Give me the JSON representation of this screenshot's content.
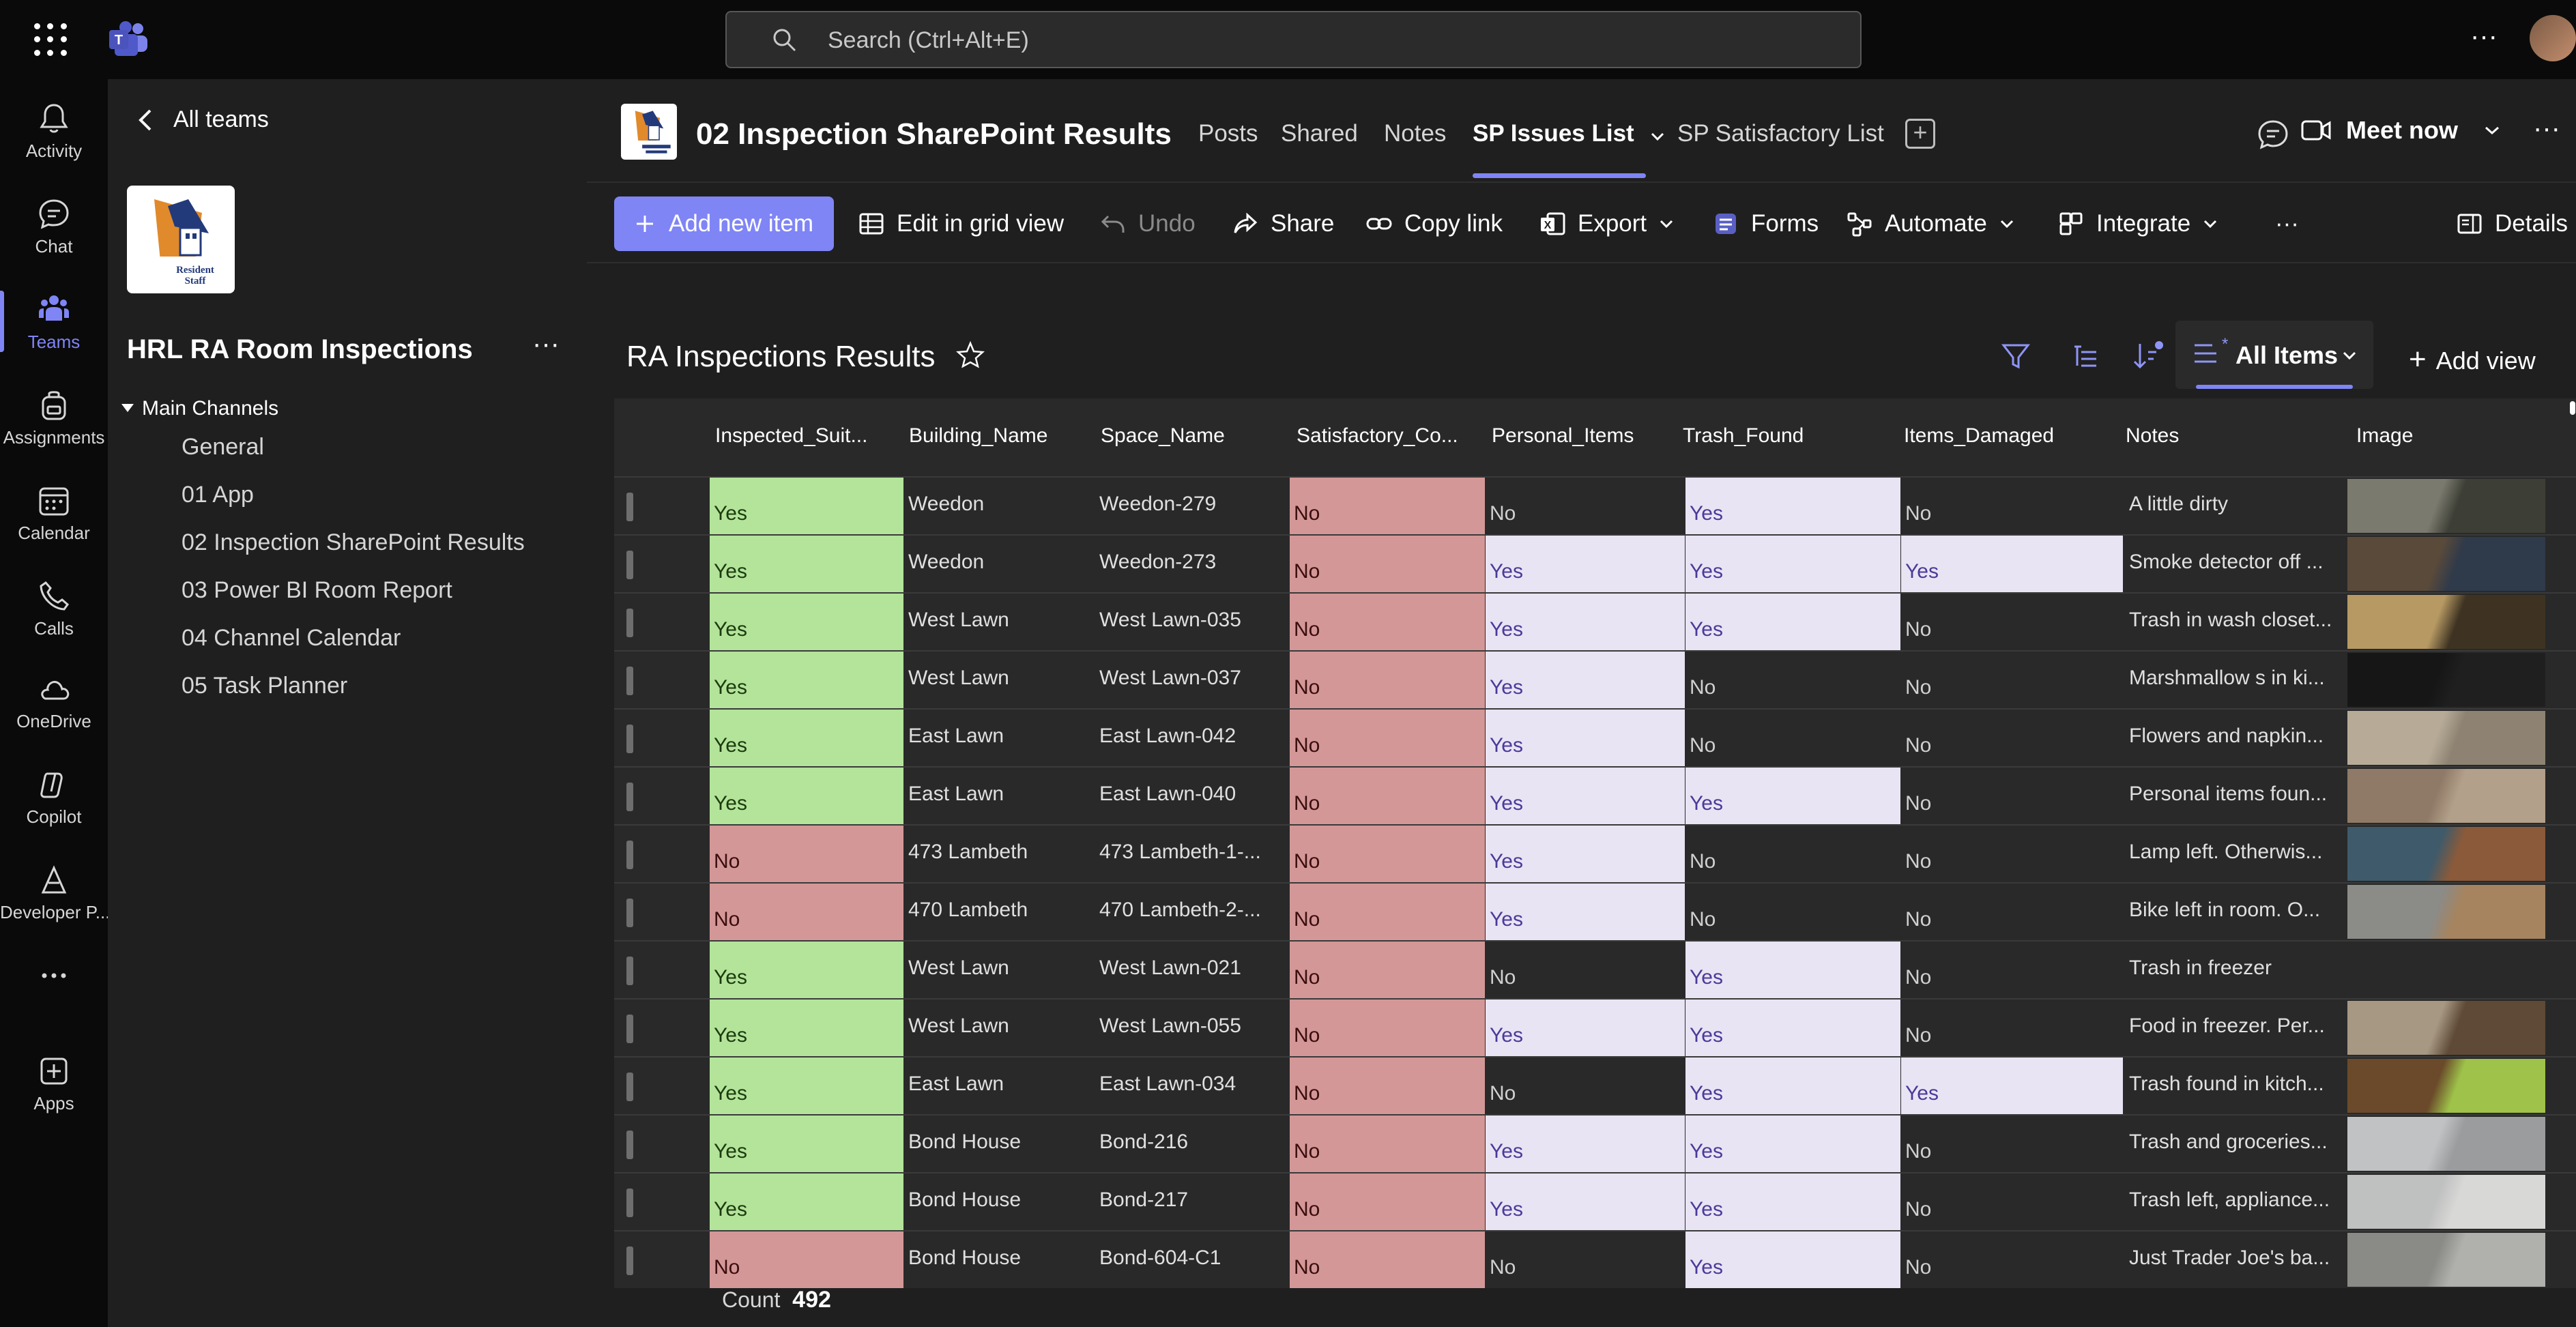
{
  "topbar": {
    "search_placeholder": "Search (Ctrl+Alt+E)"
  },
  "rail": [
    {
      "name": "activity",
      "label": "Activity",
      "icon": "bell-icon"
    },
    {
      "name": "chat",
      "label": "Chat",
      "icon": "chat-icon"
    },
    {
      "name": "teams",
      "label": "Teams",
      "icon": "teams-icon",
      "active": true
    },
    {
      "name": "assignments",
      "label": "Assignments",
      "icon": "backpack-icon"
    },
    {
      "name": "calendar",
      "label": "Calendar",
      "icon": "calendar-icon"
    },
    {
      "name": "calls",
      "label": "Calls",
      "icon": "phone-icon"
    },
    {
      "name": "onedrive",
      "label": "OneDrive",
      "icon": "cloud-icon"
    },
    {
      "name": "copilot",
      "label": "Copilot",
      "icon": "copilot-icon"
    },
    {
      "name": "developer",
      "label": "Developer P...",
      "icon": "developer-portal-icon"
    },
    {
      "name": "more",
      "label": "",
      "icon": "more-dots-icon"
    },
    {
      "name": "apps",
      "label": "Apps",
      "icon": "add-apps-icon"
    }
  ],
  "team_pane": {
    "back_label": "All teams",
    "team_name": "HRL RA Room Inspections",
    "section_label": "Main Channels",
    "channels": [
      "General",
      "01 App",
      "02 Inspection SharePoint Results",
      "03 Power BI Room Report",
      "04 Channel Calendar",
      "05 Task Planner"
    ]
  },
  "channel_header": {
    "title": "02 Inspection SharePoint Results",
    "tabs": [
      "Posts",
      "Shared",
      "Notes",
      "SP Issues List",
      "SP Satisfactory List"
    ],
    "active_tab": "SP Issues List",
    "meet_now": "Meet now"
  },
  "commands": {
    "add_new_item": "Add new item",
    "edit_grid": "Edit in grid view",
    "undo": "Undo",
    "share": "Share",
    "copy_link": "Copy link",
    "export": "Export",
    "forms": "Forms",
    "automate": "Automate",
    "integrate": "Integrate",
    "details": "Details"
  },
  "list": {
    "title": "RA Inspections Results",
    "view_name": "All Items",
    "add_view": "Add view",
    "columns": [
      "Inspected_Suit...",
      "Building_Name",
      "Space_Name",
      "Satisfactory_Co...",
      "Personal_Items",
      "Trash_Found",
      "Items_Damaged",
      "Notes",
      "Image"
    ],
    "rows": [
      {
        "inspected": "Yes",
        "building": "Weedon",
        "space": "Weedon-279",
        "satisfactory": "No",
        "personal": "No",
        "trash": "Yes",
        "damaged": "No",
        "notes": "A little dirty",
        "image": "room-photo-1"
      },
      {
        "inspected": "Yes",
        "building": "Weedon",
        "space": "Weedon-273",
        "satisfactory": "No",
        "personal": "Yes",
        "trash": "Yes",
        "damaged": "Yes",
        "notes": "Smoke detector off ...",
        "image": "room-photo-2"
      },
      {
        "inspected": "Yes",
        "building": "West Lawn",
        "space": "West Lawn-035",
        "satisfactory": "No",
        "personal": "Yes",
        "trash": "Yes",
        "damaged": "No",
        "notes": "Trash in wash closet...",
        "image": "room-photo-3"
      },
      {
        "inspected": "Yes",
        "building": "West Lawn",
        "space": "West Lawn-037",
        "satisfactory": "No",
        "personal": "Yes",
        "trash": "No",
        "damaged": "No",
        "notes": "Marshmallow s in ki...",
        "image": "room-photo-4"
      },
      {
        "inspected": "Yes",
        "building": "East Lawn",
        "space": "East Lawn-042",
        "satisfactory": "No",
        "personal": "Yes",
        "trash": "No",
        "damaged": "No",
        "notes": "Flowers and napkin...",
        "image": "room-photo-5"
      },
      {
        "inspected": "Yes",
        "building": "East Lawn",
        "space": "East Lawn-040",
        "satisfactory": "No",
        "personal": "Yes",
        "trash": "Yes",
        "damaged": "No",
        "notes": "Personal items foun...",
        "image": "room-photo-6"
      },
      {
        "inspected": "No",
        "building": "473 Lambeth",
        "space": "473 Lambeth-1-...",
        "satisfactory": "No",
        "personal": "Yes",
        "trash": "No",
        "damaged": "No",
        "notes": "Lamp left. Otherwis...",
        "image": "room-photo-7"
      },
      {
        "inspected": "No",
        "building": "470 Lambeth",
        "space": "470 Lambeth-2-...",
        "satisfactory": "No",
        "personal": "Yes",
        "trash": "No",
        "damaged": "No",
        "notes": "Bike left in room. O...",
        "image": "room-photo-8"
      },
      {
        "inspected": "Yes",
        "building": "West Lawn",
        "space": "West Lawn-021",
        "satisfactory": "No",
        "personal": "No",
        "trash": "Yes",
        "damaged": "No",
        "notes": "Trash in freezer",
        "image": ""
      },
      {
        "inspected": "Yes",
        "building": "West Lawn",
        "space": "West Lawn-055",
        "satisfactory": "No",
        "personal": "Yes",
        "trash": "Yes",
        "damaged": "No",
        "notes": "Food in freezer. Per...",
        "image": "room-photo-10"
      },
      {
        "inspected": "Yes",
        "building": "East Lawn",
        "space": "East Lawn-034",
        "satisfactory": "No",
        "personal": "No",
        "trash": "Yes",
        "damaged": "Yes",
        "notes": "Trash found in kitch...",
        "image": "room-photo-11"
      },
      {
        "inspected": "Yes",
        "building": "Bond House",
        "space": "Bond-216",
        "satisfactory": "No",
        "personal": "Yes",
        "trash": "Yes",
        "damaged": "No",
        "notes": "Trash and groceries...",
        "image": "room-photo-12"
      },
      {
        "inspected": "Yes",
        "building": "Bond House",
        "space": "Bond-217",
        "satisfactory": "No",
        "personal": "Yes",
        "trash": "Yes",
        "damaged": "No",
        "notes": "Trash left, appliance...",
        "image": "room-photo-13"
      },
      {
        "inspected": "No",
        "building": "Bond House",
        "space": "Bond-604-C1",
        "satisfactory": "No",
        "personal": "No",
        "trash": "Yes",
        "damaged": "No",
        "notes": "Just Trader Joe's ba...",
        "image": "room-photo-14"
      }
    ],
    "count_label": "Count",
    "count_value": "492"
  },
  "colors": {
    "accent": "#7f85f5",
    "yes_green": "#b3e49a",
    "no_red": "#d49797",
    "yes_purple": "#e9e4f4"
  }
}
